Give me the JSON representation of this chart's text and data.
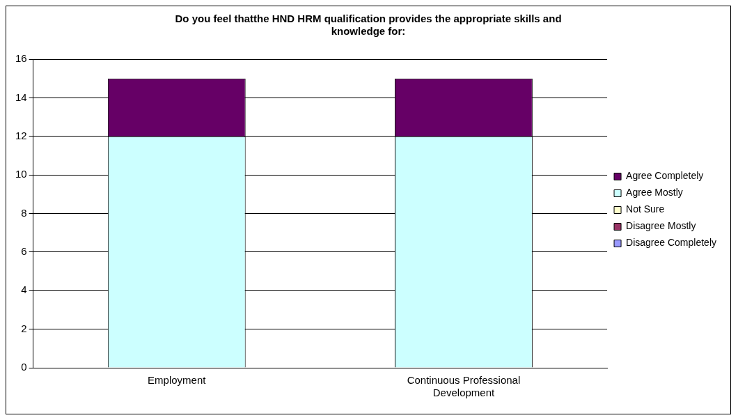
{
  "chart_data": {
    "type": "bar",
    "title": "Do you feel thatthe HND HRM qualification provides the appropriate skills and knowledge for:",
    "categories": [
      "Employment",
      "Continuous Professional Development"
    ],
    "stacked": true,
    "series": [
      {
        "name": "Disagree Completely",
        "color": "#9999ff",
        "values": [
          0,
          0
        ]
      },
      {
        "name": "Disagree Mostly",
        "color": "#993366",
        "values": [
          0,
          0
        ]
      },
      {
        "name": "Not Sure",
        "color": "#ffffcc",
        "values": [
          0,
          0
        ]
      },
      {
        "name": "Agree Mostly",
        "color": "#ccffff",
        "values": [
          12,
          12
        ]
      },
      {
        "name": "Agree Completely",
        "color": "#660066",
        "values": [
          3,
          3
        ]
      }
    ],
    "ylim": [
      0,
      16
    ],
    "yticks": [
      0,
      2,
      4,
      6,
      8,
      10,
      12,
      14,
      16
    ],
    "grid": "y",
    "legend": "right"
  }
}
